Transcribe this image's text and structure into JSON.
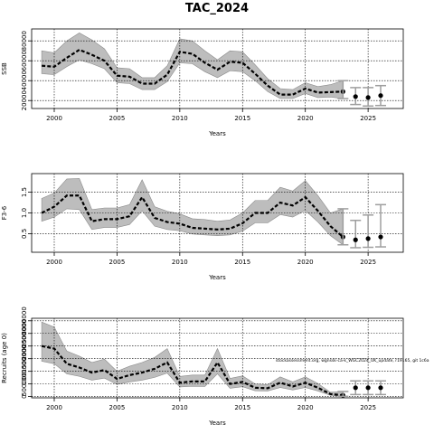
{
  "title": "TAC_2024",
  "annotation": "stockassessment.org, wgnssk-ca-k_WGC2024_UK_update, r19165, git 1c6a",
  "chart_data": [
    {
      "type": "line",
      "ylabel": "SSB",
      "xlabel": "Years",
      "xlim": [
        1998.2,
        2027.8
      ],
      "ylim": [
        12000,
        92000
      ],
      "grid": true,
      "x_ticks": [
        2000,
        2005,
        2010,
        2015,
        2020,
        2025
      ],
      "y_ticks": [
        20000,
        40000,
        60000,
        80000
      ],
      "y_tick_labels": [
        "20000",
        "40000",
        "60000",
        "80000"
      ],
      "x": [
        1999,
        2000,
        2001,
        2002,
        2003,
        2004,
        2005,
        2006,
        2007,
        2008,
        2009,
        2010,
        2011,
        2012,
        2013,
        2014,
        2015,
        2016,
        2017,
        2018,
        2019,
        2020,
        2021,
        2022,
        2023
      ],
      "estimate": [
        55000,
        54000,
        63000,
        71000,
        66000,
        60000,
        45000,
        44000,
        37000,
        37000,
        46000,
        69000,
        67000,
        58000,
        51000,
        59000,
        58000,
        47000,
        35000,
        26000,
        26000,
        32000,
        28000,
        28500,
        29000
      ],
      "lower": [
        47000,
        46000,
        54000,
        61000,
        57000,
        52000,
        38000,
        37000,
        31000,
        31000,
        39000,
        58000,
        57000,
        49000,
        43000,
        50000,
        49000,
        40000,
        29000,
        22000,
        22000,
        27000,
        23000,
        23500,
        22000
      ],
      "upper": [
        70000,
        68000,
        80000,
        88000,
        81000,
        72000,
        53000,
        52000,
        43000,
        43000,
        55000,
        82000,
        80000,
        70000,
        61000,
        70000,
        69000,
        56000,
        42000,
        32000,
        31000,
        38000,
        34000,
        36000,
        40000
      ],
      "forecast": {
        "x": [
          2024,
          2025,
          2026
        ],
        "estimate": [
          24000,
          23000,
          25000
        ],
        "lower": [
          16000,
          14500,
          15000
        ],
        "upper": [
          33000,
          33000,
          35000
        ]
      }
    },
    {
      "type": "line",
      "ylabel": "F3-6",
      "xlabel": "Years",
      "xlim": [
        1998.2,
        2027.8
      ],
      "ylim": [
        0.05,
        1.95
      ],
      "grid": true,
      "x_ticks": [
        2000,
        2005,
        2010,
        2015,
        2020,
        2025
      ],
      "y_ticks": [
        0.5,
        1.0,
        1.5
      ],
      "y_tick_labels": [
        "0.5",
        "1.0",
        "1.5"
      ],
      "x": [
        1999,
        2000,
        2001,
        2002,
        2003,
        2004,
        2005,
        2006,
        2007,
        2008,
        2009,
        2010,
        2011,
        2012,
        2013,
        2014,
        2015,
        2016,
        2017,
        2018,
        2019,
        2020,
        2021,
        2022,
        2023
      ],
      "estimate": [
        1.0,
        1.15,
        1.42,
        1.42,
        0.8,
        0.85,
        0.85,
        0.92,
        1.38,
        0.88,
        0.78,
        0.74,
        0.64,
        0.62,
        0.6,
        0.62,
        0.75,
        1.0,
        1.0,
        1.25,
        1.18,
        1.38,
        1.05,
        0.68,
        0.42
      ],
      "lower": [
        0.8,
        0.9,
        1.1,
        1.08,
        0.6,
        0.65,
        0.65,
        0.72,
        1.05,
        0.68,
        0.6,
        0.57,
        0.49,
        0.47,
        0.45,
        0.47,
        0.56,
        0.76,
        0.76,
        0.96,
        0.9,
        1.06,
        0.78,
        0.45,
        0.23
      ],
      "upper": [
        1.35,
        1.48,
        1.82,
        1.83,
        1.08,
        1.12,
        1.12,
        1.2,
        1.8,
        1.15,
        1.04,
        0.98,
        0.86,
        0.84,
        0.8,
        0.83,
        1.0,
        1.3,
        1.3,
        1.62,
        1.53,
        1.78,
        1.42,
        1.0,
        1.1
      ],
      "forecast": {
        "x": [
          2024,
          2025,
          2026
        ],
        "estimate": [
          0.35,
          0.38,
          0.42
        ],
        "lower": [
          0.16,
          0.17,
          0.18
        ],
        "upper": [
          0.82,
          0.95,
          1.2
        ]
      }
    },
    {
      "type": "line",
      "ylabel": "Recruits (age 0)",
      "xlabel": "Years",
      "xlim": [
        1998.2,
        2027.8
      ],
      "ylim": [
        -50000,
        3100000
      ],
      "grid": true,
      "x_ticks": [
        2000,
        2005,
        2010,
        2015,
        2020,
        2025
      ],
      "y_ticks": [
        0,
        500000,
        1000000,
        1500000,
        2000000,
        2500000,
        3000000
      ],
      "y_tick_labels": [
        "0",
        "500000",
        "1000000",
        "1500000",
        "2000000",
        "2500000",
        "3000000"
      ],
      "x": [
        1999,
        2000,
        2001,
        2002,
        2003,
        2004,
        2005,
        2006,
        2007,
        2008,
        2009,
        2010,
        2011,
        2012,
        2013,
        2014,
        2015,
        2016,
        2017,
        2018,
        2019,
        2020,
        2021,
        2022,
        2023
      ],
      "estimate": [
        2000000,
        1900000,
        1300000,
        1150000,
        950000,
        1050000,
        700000,
        850000,
        950000,
        1100000,
        1350000,
        550000,
        600000,
        600000,
        1350000,
        500000,
        580000,
        350000,
        330000,
        550000,
        400000,
        550000,
        350000,
        100000,
        50000
      ],
      "lower": [
        1400000,
        1300000,
        900000,
        800000,
        650000,
        730000,
        480000,
        580000,
        650000,
        760000,
        930000,
        380000,
        410000,
        400000,
        900000,
        330000,
        390000,
        230000,
        220000,
        360000,
        260000,
        360000,
        220000,
        50000,
        10000
      ],
      "upper": [
        2950000,
        2750000,
        1800000,
        1600000,
        1350000,
        1480000,
        1000000,
        1200000,
        1350000,
        1550000,
        1900000,
        800000,
        850000,
        850000,
        1900000,
        720000,
        820000,
        500000,
        470000,
        780000,
        580000,
        780000,
        520000,
        170000,
        200000
      ],
      "forecast": {
        "x": [
          2024,
          2025,
          2026
        ],
        "estimate": [
          350000,
          350000,
          350000
        ],
        "lower": [
          80000,
          80000,
          80000
        ],
        "upper": [
          620000,
          620000,
          620000
        ]
      }
    }
  ]
}
